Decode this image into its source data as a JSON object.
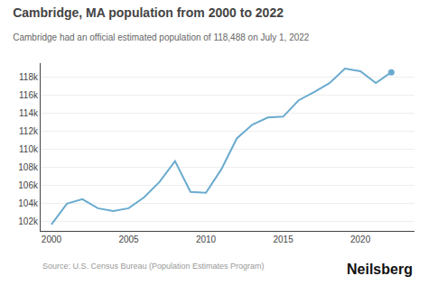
{
  "chart_data": {
    "type": "line",
    "title": "Cambridge, MA population from 2000 to 2022",
    "subtitle": "Cambridge had an official estimated population of 118,488 on July 1, 2022",
    "annotations": [
      "Source: U.S. Census Bureau (Population Estimates Program)",
      "Neilsberg"
    ],
    "x": [
      2000,
      2001,
      2002,
      2003,
      2004,
      2005,
      2006,
      2007,
      2008,
      2009,
      2010,
      2011,
      2012,
      2013,
      2014,
      2015,
      2016,
      2017,
      2018,
      2019,
      2020,
      2021,
      2022
    ],
    "values": [
      101700,
      104000,
      104500,
      103500,
      103200,
      103500,
      104700,
      106400,
      108700,
      105300,
      105200,
      107800,
      111200,
      112700,
      113500,
      113600,
      115400,
      116300,
      117300,
      118900,
      118600,
      117300,
      118488
    ],
    "color": "#6aabcf",
    "xlim": [
      1999.3,
      2023.5
    ],
    "xticks": [
      2000,
      2005,
      2010,
      2015,
      2020
    ],
    "ylim": [
      101000,
      119500
    ],
    "yticks": [
      {
        "value": 102000,
        "label": "102k"
      },
      {
        "value": 104000,
        "label": "104k"
      },
      {
        "value": 106000,
        "label": "106k"
      },
      {
        "value": 108000,
        "label": "108k"
      },
      {
        "value": 110000,
        "label": "110k"
      },
      {
        "value": 112000,
        "label": "112k"
      },
      {
        "value": 114000,
        "label": "114k"
      },
      {
        "value": 116000,
        "label": "116k"
      },
      {
        "value": 118000,
        "label": "118k"
      }
    ],
    "grid": true
  }
}
